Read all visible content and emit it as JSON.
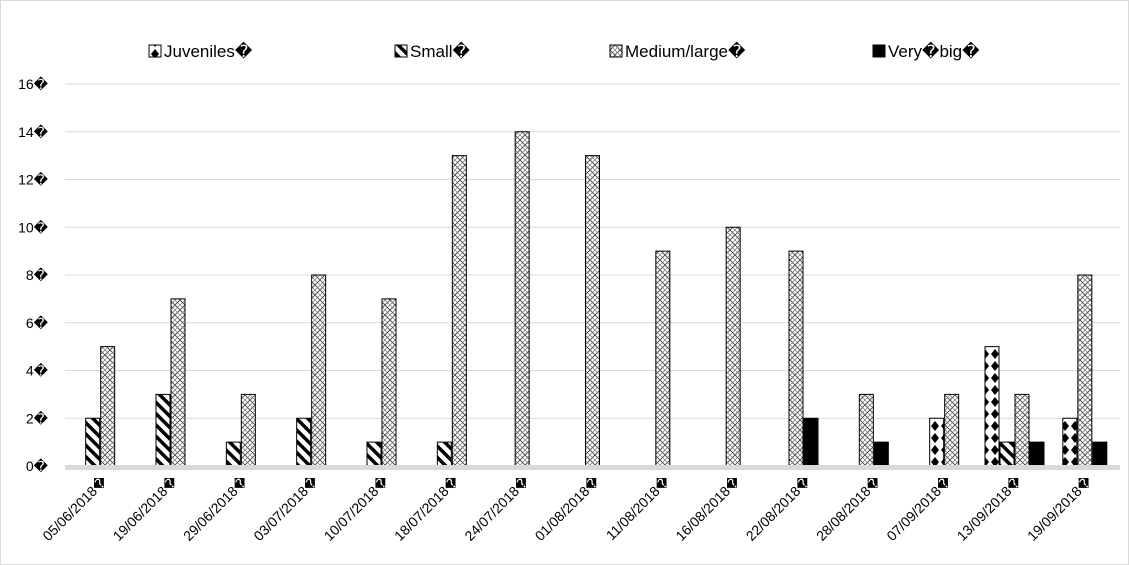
{
  "chart_data": {
    "type": "bar",
    "title": "",
    "xlabel": "",
    "ylabel": "",
    "ylim": [
      0,
      16
    ],
    "y_ticks": [
      "0�",
      "2�",
      "4�",
      "6�",
      "8�",
      "10�",
      "12�",
      "14�",
      "16�"
    ],
    "y_tick_values": [
      0,
      2,
      4,
      6,
      8,
      10,
      12,
      14,
      16
    ],
    "grid": true,
    "legend_position": "top",
    "categories": [
      "05/06/2018�",
      "19/06/2018�",
      "29/06/2018�",
      "03/07/2018�",
      "10/07/2018�",
      "18/07/2018�",
      "24/07/2018�",
      "01/08/2018�",
      "11/08/2018�",
      "16/08/2018�",
      "22/08/2018�",
      "28/08/2018�",
      "07/09/2018�",
      "13/09/2018�",
      "19/09/2018�"
    ],
    "series": [
      {
        "name": "Juveniles�",
        "pattern": "diamonds",
        "values": [
          0,
          0,
          0,
          0,
          0,
          0,
          0,
          0,
          0,
          0,
          0,
          0,
          2,
          5,
          2
        ]
      },
      {
        "name": "Small�",
        "pattern": "diagonal-stripes",
        "values": [
          2,
          3,
          1,
          2,
          1,
          1,
          0,
          0,
          0,
          0,
          0,
          0,
          0,
          1,
          0
        ]
      },
      {
        "name": "Medium/large�",
        "pattern": "crosshatch",
        "values": [
          5,
          7,
          3,
          8,
          7,
          13,
          14,
          13,
          9,
          10,
          9,
          3,
          3,
          3,
          8
        ]
      },
      {
        "name": "Very�big�",
        "pattern": "solid",
        "color": "#000000",
        "values": [
          0,
          0,
          0,
          0,
          0,
          0,
          0,
          0,
          0,
          0,
          2,
          1,
          0,
          1,
          1
        ]
      }
    ]
  }
}
